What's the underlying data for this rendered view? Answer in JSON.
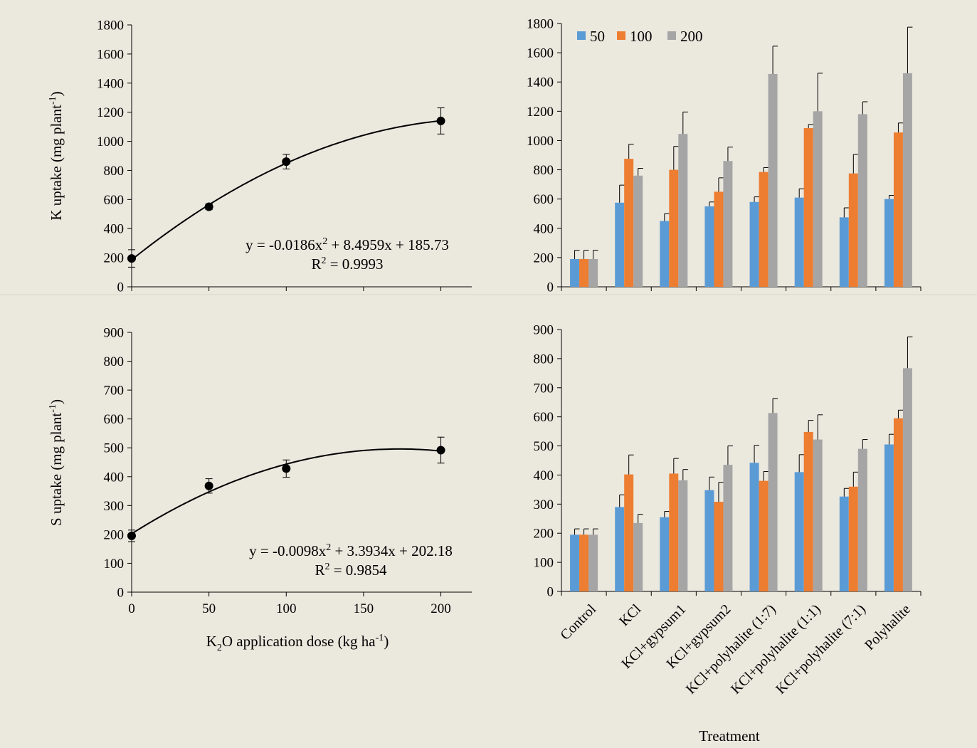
{
  "figure": {
    "background": "#ebe8de",
    "colors": {
      "d50": "#5b9bd5",
      "d100": "#ed7d31",
      "d200": "#a5a5a5",
      "marker": "#000000"
    }
  },
  "chart_data": [
    {
      "id": "k-regression",
      "type": "scatter",
      "ylabel": "K uptake (mg plant-1)",
      "ylabel_parts": {
        "base": "K uptake (mg plant",
        "sup": "-1",
        "end": ")"
      },
      "xlabel": "",
      "xlim": [
        0,
        220
      ],
      "ylim": [
        0,
        1800
      ],
      "xticks": [],
      "yticks": [
        0,
        200,
        400,
        600,
        800,
        1000,
        1200,
        1400,
        1600,
        1800
      ],
      "x": [
        0,
        50,
        100,
        200
      ],
      "y": [
        195,
        550,
        860,
        1140
      ],
      "yerr": [
        60,
        20,
        50,
        90
      ],
      "fit": {
        "a": -0.0186,
        "b": 8.4959,
        "c": 185.73
      },
      "equation_parts": {
        "left": "y = -0.0186x",
        "sup": "2",
        "right": " + 8.4959x + 185.73"
      },
      "r2_parts": {
        "left": "R",
        "sup": "2",
        "right": " = 0.9993"
      },
      "grid": false
    },
    {
      "id": "k-bars",
      "type": "bar",
      "ylim": [
        0,
        1800
      ],
      "yticks": [
        0,
        200,
        400,
        600,
        800,
        1000,
        1200,
        1400,
        1600,
        1800
      ],
      "categories": [
        "Control",
        "KCl",
        "KCl+gypsum1",
        "KCl+gypsum2",
        "KCl+polyhalite (1:7)",
        "KCl+polyhalite (1:1)",
        "KCl+polyhalite (7:1)",
        "Polyhalite"
      ],
      "series": [
        {
          "name": "50",
          "color": "#5b9bd5",
          "values": [
            190,
            575,
            450,
            550,
            580,
            610,
            475,
            600
          ],
          "err": [
            60,
            120,
            50,
            30,
            35,
            60,
            65,
            25
          ]
        },
        {
          "name": "100",
          "color": "#ed7d31",
          "values": [
            190,
            875,
            800,
            650,
            785,
            1085,
            775,
            1055
          ],
          "err": [
            60,
            100,
            160,
            95,
            30,
            25,
            130,
            65
          ]
        },
        {
          "name": "200",
          "color": "#a5a5a5",
          "values": [
            190,
            760,
            1045,
            860,
            1455,
            1200,
            1180,
            1460
          ],
          "err": [
            60,
            50,
            150,
            95,
            190,
            260,
            85,
            315
          ]
        }
      ],
      "legend": "top-left",
      "show_category_labels": false,
      "grid": false
    },
    {
      "id": "s-regression",
      "type": "scatter",
      "ylabel": "S uptake (mg plant-1)",
      "ylabel_parts": {
        "base": "S uptake (mg plant",
        "sup": "-1",
        "end": ")"
      },
      "xlabel": "K2O application dose (kg ha-1)",
      "xlabel_parts": {
        "a": "K",
        "sub": "2",
        "b": "O application dose (kg ha",
        "sup": "-1",
        "c": ")"
      },
      "xlim": [
        0,
        220
      ],
      "ylim": [
        0,
        900
      ],
      "xticks": [
        0,
        50,
        100,
        150,
        200
      ],
      "yticks": [
        0,
        100,
        200,
        300,
        400,
        500,
        600,
        700,
        800,
        900
      ],
      "x": [
        0,
        50,
        100,
        200
      ],
      "y": [
        195,
        368,
        428,
        492
      ],
      "yerr": [
        20,
        25,
        30,
        45
      ],
      "fit": {
        "a": -0.0098,
        "b": 3.3934,
        "c": 202.18
      },
      "equation_parts": {
        "left": "y = -0.0098x",
        "sup": "2",
        "right": " + 3.3934x + 202.18"
      },
      "r2_parts": {
        "left": "R",
        "sup": "2",
        "right": " = 0.9854"
      },
      "grid": false
    },
    {
      "id": "s-bars",
      "type": "bar",
      "xlabel": "Treatment",
      "ylim": [
        0,
        900
      ],
      "yticks": [
        0,
        100,
        200,
        300,
        400,
        500,
        600,
        700,
        800,
        900
      ],
      "categories": [
        "Control",
        "KCl",
        "KCl+gypsum1",
        "KCl+gypsum2",
        "KCl+polyhalite (1:7)",
        "KCl+polyhalite (1:1)",
        "KCl+polyhalite (7:1)",
        "Polyhalite"
      ],
      "series": [
        {
          "name": "50",
          "color": "#5b9bd5",
          "values": [
            195,
            290,
            255,
            348,
            442,
            410,
            326,
            505
          ],
          "err": [
            20,
            42,
            20,
            45,
            60,
            60,
            28,
            35
          ]
        },
        {
          "name": "100",
          "color": "#ed7d31",
          "values": [
            195,
            402,
            405,
            308,
            380,
            548,
            360,
            595
          ],
          "err": [
            20,
            67,
            52,
            67,
            32,
            40,
            50,
            28
          ]
        },
        {
          "name": "200",
          "color": "#a5a5a5",
          "values": [
            195,
            235,
            382,
            435,
            613,
            522,
            490,
            767
          ],
          "err": [
            20,
            30,
            37,
            65,
            50,
            85,
            32,
            108
          ]
        }
      ],
      "show_category_labels": true,
      "grid": false
    }
  ]
}
